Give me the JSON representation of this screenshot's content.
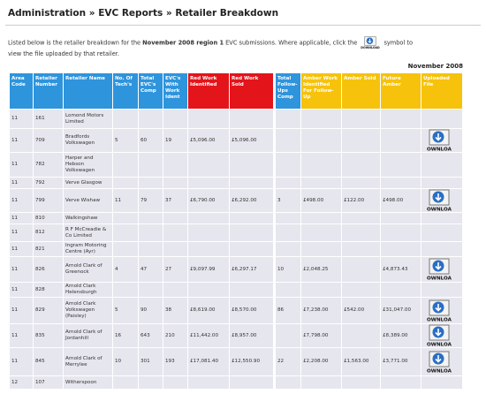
{
  "header": {
    "title": "Administration » EVC Reports » Retailer Breakdown"
  },
  "intro": {
    "before": "Listed below is the retailer breakdown for the ",
    "bold": "November 2008 region 1",
    "middle": " EVC submissions. Where applicable, click the ",
    "after": " symbol to view the file uploaded by that retailer."
  },
  "download_label": "DOWNLOAD",
  "period": "November 2008",
  "table": {
    "columns": [
      "Area Code",
      "Retailer Number",
      "Retailer Name",
      "No. Of Tech's",
      "Total EVC's Comp",
      "EVC's With Work Ident",
      "Red Work Identified",
      "Red Work Sold",
      "Total Follow-Ups Comp",
      "Amber Work Identified For Follow-Up",
      "Amber Sold",
      "Future Amber",
      "Uploaded File"
    ],
    "rows": [
      {
        "cells": [
          "11",
          "161",
          "Lomond Motors Limited",
          null,
          null,
          null,
          null,
          null,
          null,
          null,
          null,
          null
        ],
        "file": false
      },
      {
        "cells": [
          "11",
          "709",
          "Bradfords Volkswagen",
          "5",
          "60",
          "19",
          "£5,096.00",
          "£5,096.00",
          null,
          null,
          null,
          null
        ],
        "file": true
      },
      {
        "cells": [
          "11",
          "782",
          "Harper and Hebson Volkswagen",
          null,
          null,
          null,
          null,
          null,
          null,
          null,
          null,
          null
        ],
        "file": false
      },
      {
        "cells": [
          "11",
          "792",
          "Verve Glasgow",
          null,
          null,
          null,
          null,
          null,
          null,
          null,
          null,
          null
        ],
        "file": false
      },
      {
        "cells": [
          "11",
          "799",
          "Verve Wishaw",
          "11",
          "79",
          "37",
          "£6,790.00",
          "£6,292.00",
          "3",
          "£498.00",
          "£122.00",
          "£498.00"
        ],
        "file": true
      },
      {
        "cells": [
          "11",
          "810",
          "Walkingshaw",
          null,
          null,
          null,
          null,
          null,
          null,
          null,
          null,
          null
        ],
        "file": false
      },
      {
        "cells": [
          "11",
          "812",
          "R F McCreadie & Co Limited",
          null,
          null,
          null,
          null,
          null,
          null,
          null,
          null,
          null
        ],
        "file": false
      },
      {
        "cells": [
          "11",
          "821",
          "Ingram Motoring Centre (Ayr)",
          null,
          null,
          null,
          null,
          null,
          null,
          null,
          null,
          null
        ],
        "file": false
      },
      {
        "cells": [
          "11",
          "826",
          "Arnold Clark of Greenock",
          "4",
          "47",
          "27",
          "£9,097.99",
          "£6,297.17",
          "10",
          "£2,048.25",
          null,
          "£4,873.43"
        ],
        "file": true
      },
      {
        "cells": [
          "11",
          "828",
          "Arnold Clark Helensburgh",
          null,
          null,
          null,
          null,
          null,
          null,
          null,
          null,
          null
        ],
        "file": false
      },
      {
        "cells": [
          "11",
          "829",
          "Arnold Clark Volkswagen (Paisley)",
          "5",
          "90",
          "38",
          "£8,619.00",
          "£8,570.00",
          "86",
          "£7,238.00",
          "£542.00",
          "£31,047.00"
        ],
        "file": true
      },
      {
        "cells": [
          "11",
          "835",
          "Arnold Clark of Jordanhill",
          "16",
          "643",
          "210",
          "£11,442.00",
          "£8,957.00",
          null,
          "£7,798.00",
          null,
          "£8,389.00"
        ],
        "file": true
      },
      {
        "cells": [
          "11",
          "845",
          "Arnold Clark of Merrylee",
          "10",
          "301",
          "193",
          "£17,081.40",
          "£12,550.90",
          "22",
          "£2,208.00",
          "£1,563.00",
          "£3,771.00"
        ],
        "file": true
      },
      {
        "cells": [
          "12",
          "107",
          "Witherspoon",
          null,
          null,
          null,
          null,
          null,
          null,
          null,
          null,
          null
        ],
        "file": false
      }
    ]
  }
}
